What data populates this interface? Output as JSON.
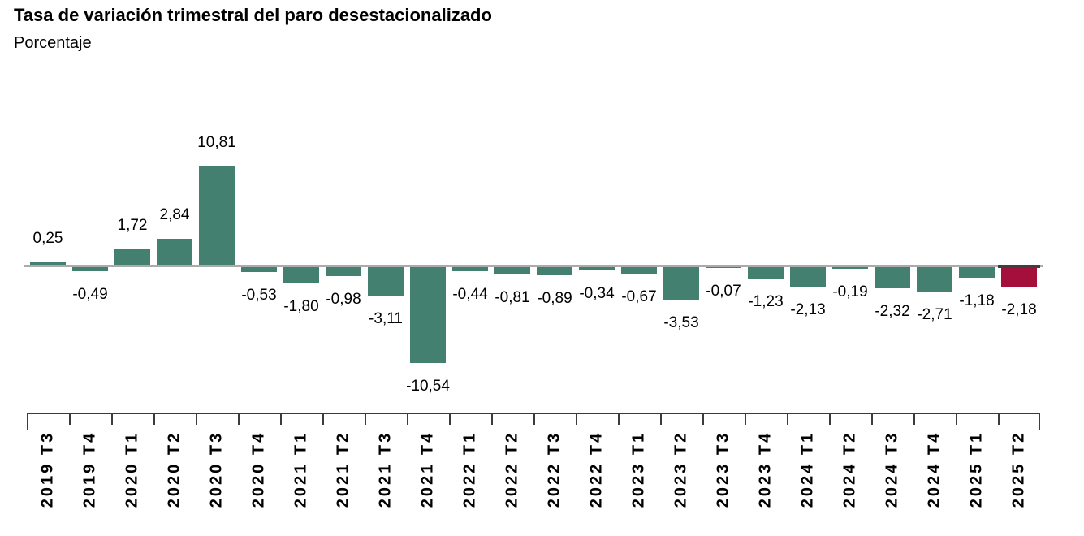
{
  "header": {
    "title": "Tasa de variación trimestral del paro desestacionalizado",
    "subtitle": "Porcentaje"
  },
  "chart_data": {
    "type": "bar",
    "title": "Tasa de variación trimestral del paro desestacionalizado",
    "ylabel": "Porcentaje",
    "xlabel": "",
    "categories": [
      "2019 T3",
      "2019 T4",
      "2020 T1",
      "2020 T2",
      "2020 T3",
      "2020 T4",
      "2021 T1",
      "2021 T2",
      "2021 T3",
      "2021 T4",
      "2022 T1",
      "2022 T2",
      "2022 T3",
      "2022 T4",
      "2023 T1",
      "2023 T2",
      "2023 T3",
      "2023 T4",
      "2024 T1",
      "2024 T2",
      "2024 T3",
      "2024 T4",
      "2025 T1",
      "2025 T2"
    ],
    "values": [
      0.25,
      -0.49,
      1.72,
      2.84,
      10.81,
      -0.53,
      -1.8,
      -0.98,
      -3.11,
      -10.54,
      -0.44,
      -0.81,
      -0.89,
      -0.34,
      -0.67,
      -3.53,
      -0.07,
      -1.23,
      -2.13,
      -0.19,
      -2.32,
      -2.71,
      -1.18,
      -2.18
    ],
    "value_labels": [
      "0,25",
      "-0,49",
      "1,72",
      "2,84",
      "10,81",
      "-0,53",
      "-1,80",
      "-0,98",
      "-3,11",
      "-10,54",
      "-0,44",
      "-0,81",
      "-0,89",
      "-0,34",
      "-0,67",
      "-3,53",
      "-0,07",
      "-1,23",
      "-2,13",
      "-0,19",
      "-2,32",
      "-2,71",
      "-1,18",
      "-2,18"
    ],
    "decimal_separator": ",",
    "bar_color": "#43806F",
    "highlight_color": "#A50F3C",
    "highlight_index": 23,
    "highlight_marker_color": "#3F3F3F",
    "baseline_color": "#ABABAB",
    "axis_color": "#3C3C3C",
    "text_color": "#000000",
    "ylim": [
      -12,
      12
    ],
    "grid": false,
    "legend": "none"
  }
}
